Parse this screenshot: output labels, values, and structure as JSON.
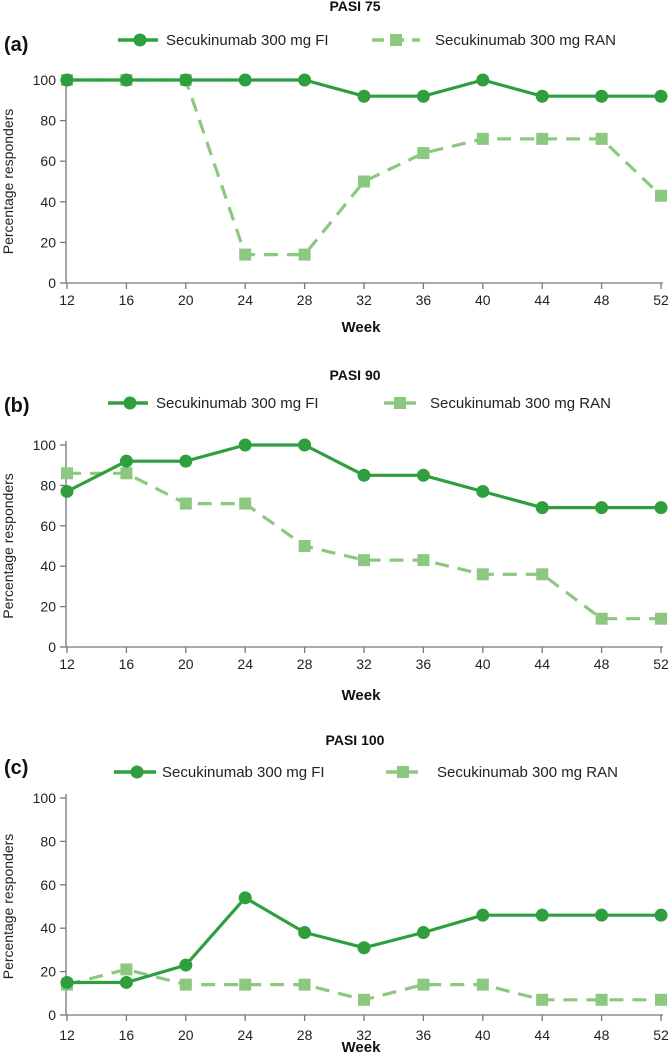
{
  "chart_data": [
    {
      "type": "line",
      "panel_label": "(a)",
      "title": "PASI 75",
      "xlabel": "Week",
      "ylabel": "Percentage responders",
      "x": [
        12,
        16,
        20,
        24,
        28,
        32,
        36,
        40,
        44,
        48,
        52
      ],
      "xticks": [
        "12",
        "16",
        "20",
        "24",
        "28",
        "32",
        "36",
        "40",
        "44",
        "48",
        "52"
      ],
      "yticks": [
        "0",
        "20",
        "40",
        "60",
        "80",
        "100"
      ],
      "ylim": [
        0,
        100
      ],
      "legend_position": "top",
      "series": [
        {
          "name": "Secukinumab 300 mg FI",
          "values": [
            100,
            100,
            100,
            100,
            100,
            92,
            92,
            100,
            92,
            92,
            92
          ],
          "color": "#2e9e3e",
          "style": "solid-circle"
        },
        {
          "name": "Secukinumab 300 mg RAN",
          "values": [
            100,
            100,
            100,
            14,
            14,
            50,
            64,
            71,
            71,
            71,
            43
          ],
          "color": "#8cc87f",
          "style": "dashed-square"
        }
      ]
    },
    {
      "type": "line",
      "panel_label": "(b)",
      "title": "PASI 90",
      "xlabel": "Week",
      "ylabel": "Percentage responders",
      "x": [
        12,
        16,
        20,
        24,
        28,
        32,
        36,
        40,
        44,
        48,
        52
      ],
      "xticks": [
        "12",
        "16",
        "20",
        "24",
        "28",
        "32",
        "36",
        "40",
        "44",
        "48",
        "52"
      ],
      "yticks": [
        "0",
        "20",
        "40",
        "60",
        "80",
        "100"
      ],
      "ylim": [
        0,
        100
      ],
      "legend_position": "top",
      "series": [
        {
          "name": "Secukinumab 300 mg FI",
          "values": [
            77,
            92,
            92,
            100,
            100,
            85,
            85,
            77,
            69,
            69,
            69
          ],
          "color": "#2e9e3e",
          "style": "solid-circle"
        },
        {
          "name": "Secukinumab 300 mg RAN",
          "values": [
            86,
            86,
            71,
            71,
            50,
            43,
            43,
            36,
            36,
            14,
            14
          ],
          "color": "#8cc87f",
          "style": "dashed-square"
        }
      ]
    },
    {
      "type": "line",
      "panel_label": "(c)",
      "title": "PASI 100",
      "xlabel": "Week",
      "ylabel": "Percentage responders",
      "x": [
        12,
        16,
        20,
        24,
        28,
        32,
        36,
        40,
        44,
        48,
        52
      ],
      "xticks": [
        "12",
        "16",
        "20",
        "24",
        "28",
        "32",
        "36",
        "40",
        "44",
        "48",
        "52"
      ],
      "yticks": [
        "0",
        "20",
        "40",
        "60",
        "80",
        "100"
      ],
      "ylim": [
        0,
        100
      ],
      "legend_position": "top",
      "series": [
        {
          "name": "Secukinumab 300 mg FI",
          "values": [
            15,
            15,
            23,
            54,
            38,
            31,
            38,
            46,
            46,
            46,
            46
          ],
          "color": "#2e9e3e",
          "style": "solid-circle"
        },
        {
          "name": "Secukinumab 300 mg RAN",
          "values": [
            14,
            21,
            14,
            14,
            14,
            7,
            14,
            14,
            7,
            7,
            7
          ],
          "color": "#8cc87f",
          "style": "dashed-square"
        }
      ]
    }
  ]
}
